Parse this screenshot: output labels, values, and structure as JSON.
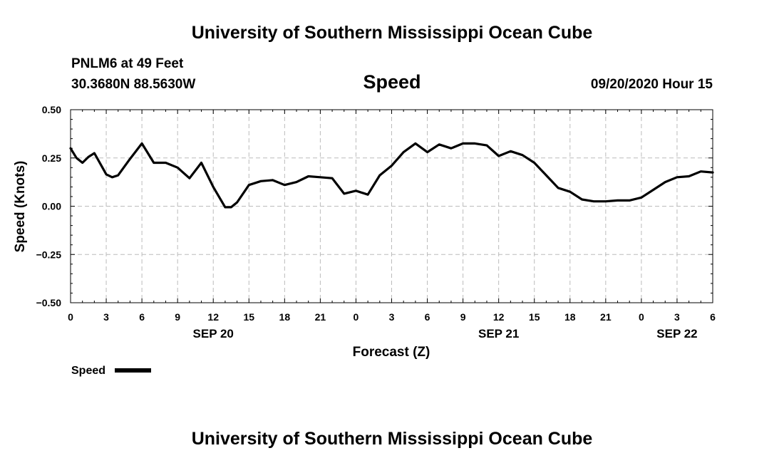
{
  "header": {
    "title": "University of Southern Mississippi Ocean Cube",
    "station": "PNLM6 at 49 Feet",
    "location": "30.3680N 88.5630W",
    "subtitle": "Speed",
    "timestamp": "09/20/2020 Hour 15"
  },
  "footer": {
    "title": "University of Southern Mississippi Ocean Cube"
  },
  "colors": {
    "line": "#000000",
    "grid": "#bbbbbb",
    "axis": "#000000",
    "background": "#ffffff"
  },
  "chart_data": {
    "type": "line",
    "title": "Speed",
    "xlabel": "Forecast (Z)",
    "ylabel": "Speed (Knots)",
    "ylim": [
      -0.5,
      0.5
    ],
    "y_ticks": [
      -0.5,
      -0.25,
      0.0,
      0.25,
      0.5
    ],
    "y_tick_labels": [
      "−0.50",
      "−0.25",
      "0.00",
      "0.25",
      "0.50"
    ],
    "xlim_hours": [
      0,
      54
    ],
    "x_tick_hours": [
      0,
      3,
      6,
      9,
      12,
      15,
      18,
      21,
      24,
      27,
      30,
      33,
      36,
      39,
      42,
      45,
      48,
      51,
      54
    ],
    "x_tick_labels": [
      "0",
      "3",
      "6",
      "9",
      "12",
      "15",
      "18",
      "21",
      "0",
      "3",
      "6",
      "9",
      "12",
      "15",
      "18",
      "21",
      "0",
      "3",
      "6"
    ],
    "date_labels": [
      {
        "text": "SEP 20",
        "hour": 12
      },
      {
        "text": "SEP 21",
        "hour": 36
      },
      {
        "text": "SEP 22",
        "hour": 51
      }
    ],
    "grid": true,
    "legend_position": "bottom-left",
    "series": [
      {
        "name": "Speed",
        "x": [
          0,
          0.5,
          1,
          1.5,
          2,
          3,
          3.5,
          4,
          5,
          6,
          7,
          8,
          9,
          10,
          11,
          12,
          13,
          13.5,
          14,
          15,
          16,
          17,
          18,
          19,
          20,
          21,
          22,
          23,
          24,
          25,
          26,
          27,
          28,
          29,
          30,
          31,
          32,
          33,
          34,
          35,
          36,
          37,
          38,
          39,
          40,
          41,
          42,
          43,
          44,
          45,
          46,
          47,
          48,
          49,
          50,
          51,
          52,
          53,
          54
        ],
        "y": [
          0.3,
          0.25,
          0.225,
          0.255,
          0.275,
          0.165,
          0.15,
          0.16,
          0.245,
          0.325,
          0.225,
          0.225,
          0.2,
          0.145,
          0.225,
          0.1,
          -0.005,
          -0.005,
          0.02,
          0.11,
          0.13,
          0.135,
          0.11,
          0.125,
          0.155,
          0.15,
          0.145,
          0.065,
          0.08,
          0.06,
          0.16,
          0.21,
          0.28,
          0.325,
          0.28,
          0.32,
          0.3,
          0.325,
          0.325,
          0.315,
          0.26,
          0.285,
          0.265,
          0.225,
          0.16,
          0.095,
          0.075,
          0.035,
          0.025,
          0.025,
          0.03,
          0.03,
          0.045,
          0.085,
          0.125,
          0.15,
          0.155,
          0.18,
          0.175
        ]
      }
    ]
  }
}
